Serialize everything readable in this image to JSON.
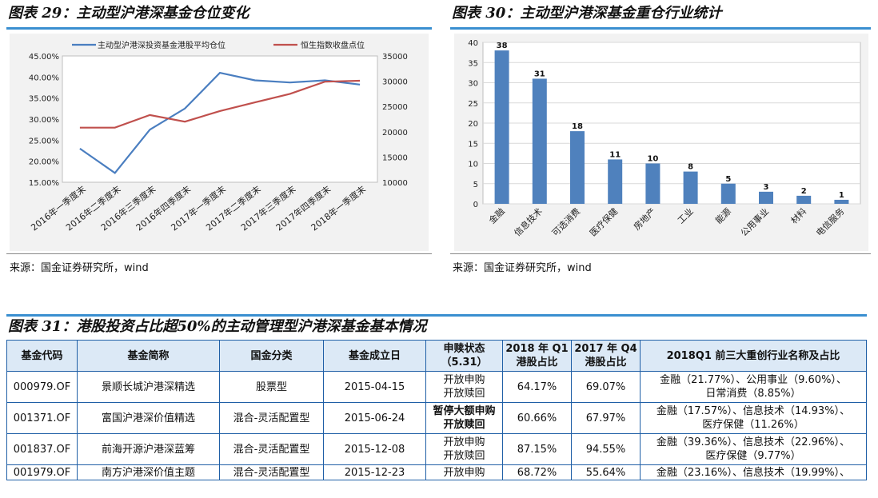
{
  "fig29": {
    "title": "图表 29：主动型沪港深基金仓位变化",
    "source": "来源：国金证券研究所，wind"
  },
  "fig30": {
    "title": "图表 30：主动型沪港深基金重仓行业统计",
    "source": "来源：国金证券研究所，wind"
  },
  "fig31": {
    "title": "图表 31：港股投资占比超50%的主动管理型沪港深基金基本情况"
  },
  "colors": {
    "accent_rule": "#3a8fd0",
    "blue_series": "#4a7ec0",
    "red_series": "#c0504d",
    "bar": "#4f81bd",
    "table_header": "#dce9f6",
    "table_border": "#1f5fa6"
  },
  "chart_data": [
    {
      "type": "line",
      "x": [
        "2016年一季度末",
        "2016年二季度末",
        "2016年三季度末",
        "2016年四季度末",
        "2017年一季度末",
        "2017年二季度末",
        "2017年三季度末",
        "2017年四季度末",
        "2018年一季度末"
      ],
      "series": [
        {
          "name": "主动型沪港深投资基金港股平均仓位",
          "axis": "left",
          "values": [
            23.0,
            17.2,
            27.5,
            32.5,
            41.0,
            39.2,
            38.7,
            39.2,
            38.2
          ]
        },
        {
          "name": "恒生指数收盘点位",
          "axis": "right",
          "values": [
            20800,
            20800,
            23300,
            22000,
            24100,
            25800,
            27500,
            29900,
            30100
          ]
        }
      ],
      "yticks_left": [
        "45.00%",
        "40.00%",
        "35.00%",
        "30.00%",
        "25.00%",
        "20.00%",
        "15.00%"
      ],
      "yticks_right": [
        "35000",
        "30000",
        "25000",
        "20000",
        "15000",
        "10000"
      ],
      "ylim_left": [
        15,
        45
      ],
      "ylim_right": [
        10000,
        35000
      ],
      "legend": "top"
    },
    {
      "type": "bar",
      "categories": [
        "金融",
        "信息技术",
        "可选消费",
        "医疗保健",
        "房地产",
        "工业",
        "能源",
        "公用事业",
        "材料",
        "电信服务"
      ],
      "values": [
        38,
        31,
        18,
        11,
        10,
        8,
        5,
        3,
        2,
        1
      ],
      "yticks": [
        "40",
        "35",
        "30",
        "25",
        "20",
        "15",
        "10",
        "5",
        "0"
      ],
      "ylim": [
        0,
        40
      ]
    }
  ],
  "table": {
    "headers": [
      "基金代码",
      "基金简称",
      "国金分类",
      "基金成立日",
      "申赎状态（5.31）",
      "2018 年 Q1 港股占比",
      "2017 年 Q4 港股占比",
      "2018Q1 前三大重创行业名称及占比"
    ],
    "header_lines": {
      "h5a": "申赎状态",
      "h5b": "（5.31）",
      "h6a": "2018 年 Q1",
      "h6b": "港股占比",
      "h7a": "2017 年 Q4",
      "h7b": "港股占比"
    },
    "rows": [
      {
        "code": "000979.OF",
        "name": "景顺长城沪港深精选",
        "type": "股票型",
        "date": "2015-04-15",
        "status1": "开放申购",
        "status2": "开放赎回",
        "q1": "64.17%",
        "q4": "69.07%",
        "ind1": "金融（21.77%）、公用事业（9.60%）、",
        "ind2": "日常消费（8.85%）"
      },
      {
        "code": "001371.OF",
        "name": "富国沪港深价值精选",
        "type": "混合-灵活配置型",
        "date": "2015-06-24",
        "status1": "暂停大额申购",
        "status2": "开放赎回",
        "q1": "60.66%",
        "q4": "67.97%",
        "ind1": "金融（17.57%）、信息技术（14.93%）、",
        "ind2": "医疗保健（11.26%）"
      },
      {
        "code": "001837.OF",
        "name": "前海开源沪港深蓝筹",
        "type": "混合-灵活配置型",
        "date": "2015-12-08",
        "status1": "开放申购",
        "status2": "开放赎回",
        "q1": "87.15%",
        "q4": "94.55%",
        "ind1": "金融（39.36%）、信息技术（22.96%）、",
        "ind2": "医疗保健（9.77%）"
      },
      {
        "code": "001979.OF",
        "name": "南方沪港深价值主题",
        "type": "混合-灵活配置型",
        "date": "2015-12-23",
        "status1": "开放申购",
        "q1": "68.72%",
        "q4": "55.64%",
        "ind1": "金融（23.16%）、信息技术（19.99%）、"
      }
    ]
  }
}
